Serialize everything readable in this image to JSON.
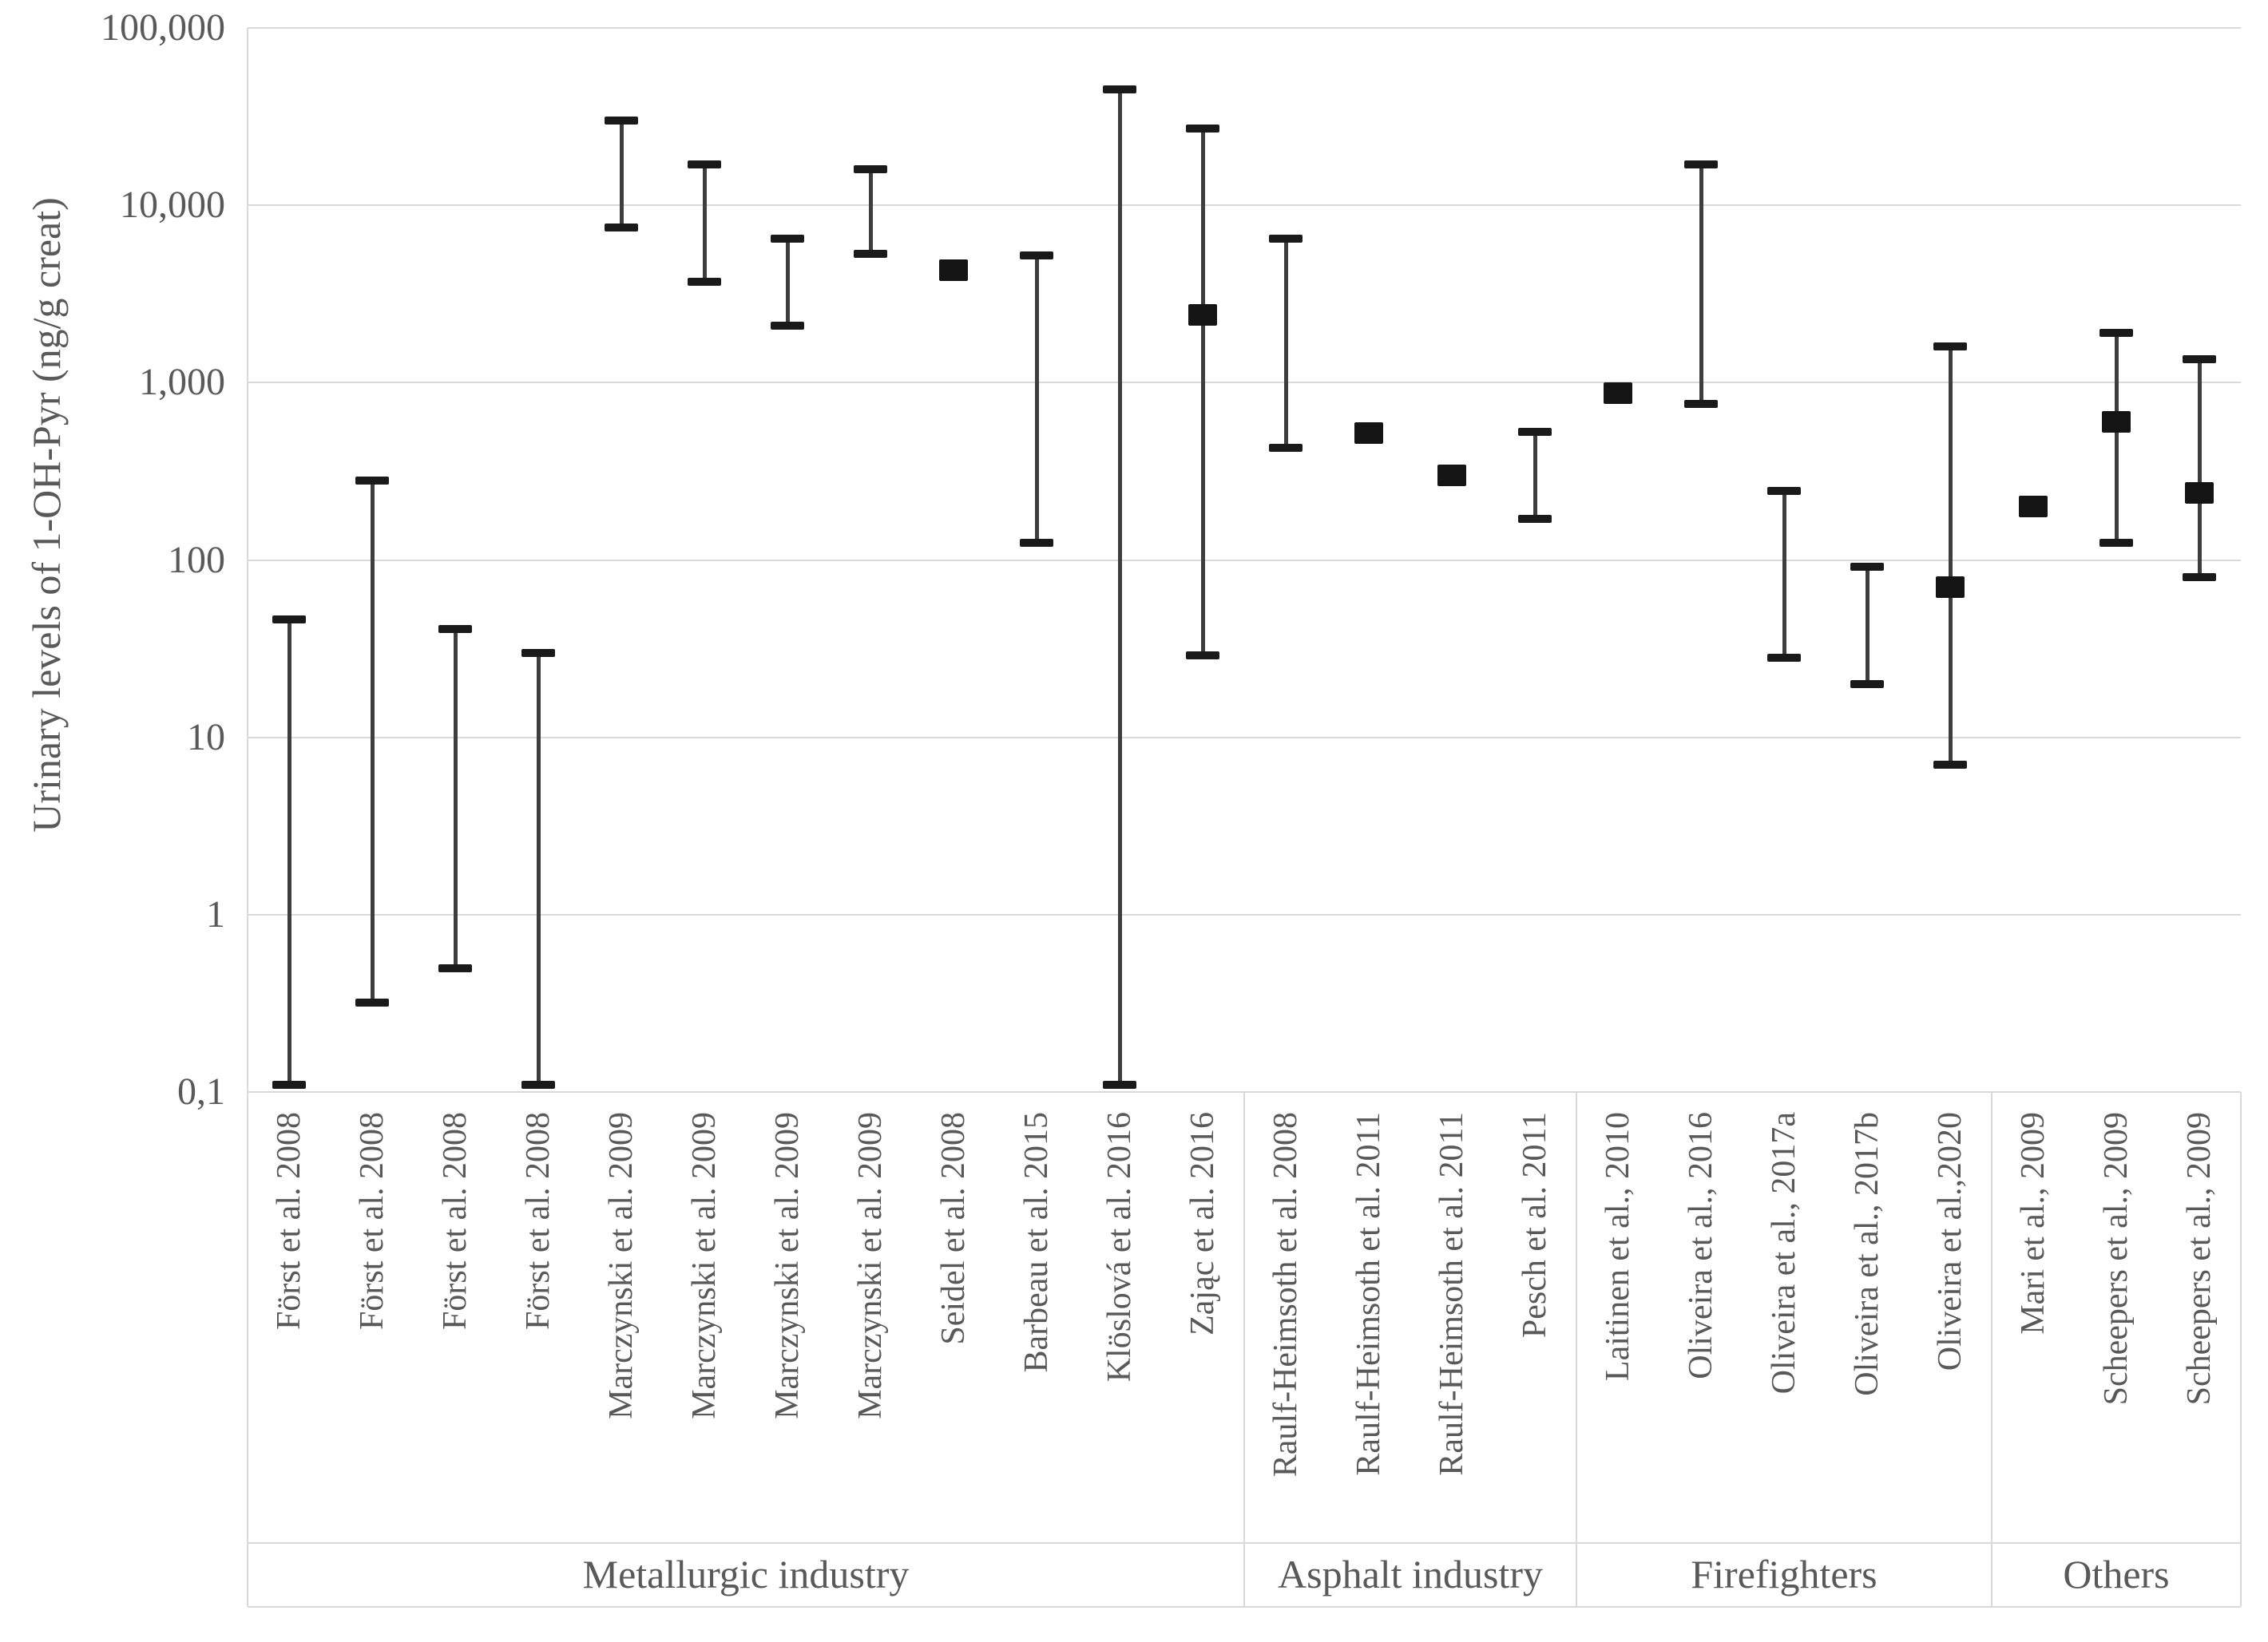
{
  "chart_data": {
    "type": "error-bar-log",
    "title": "",
    "ylabel": "Urinary levels of 1-OH-Pyr (ng/g creat)",
    "xlabel": "",
    "ylim": [
      0.1,
      100000
    ],
    "grid": true,
    "legend": "none",
    "y_ticks": [
      "100,000",
      "10,000",
      "1,000",
      "100",
      "10",
      "1",
      "0,1"
    ],
    "y_tick_values": [
      100000,
      10000,
      1000,
      100,
      10,
      1,
      0.1
    ],
    "colors": {
      "error_line": "#3d3d3d",
      "error_cap": "#1a1a1a",
      "marker": "#141414",
      "grid": "#d9d9d9",
      "text": "#595959"
    },
    "groups": [
      {
        "label": "Metallurgic industry",
        "studies": [
          {
            "label": "Först et al. 2008",
            "low": 0.11,
            "high": 46,
            "marker": null
          },
          {
            "label": "Först et al. 2008",
            "low": 0.32,
            "high": 280,
            "marker": null
          },
          {
            "label": "Först et al. 2008",
            "low": 0.5,
            "high": 41,
            "marker": null
          },
          {
            "label": "Först et al. 2008",
            "low": 0.11,
            "high": 30,
            "marker": null
          },
          {
            "label": "Marczynski et al. 2009",
            "low": 7500,
            "high": 30000,
            "marker": null
          },
          {
            "label": "Marczynski et al. 2009",
            "low": 3700,
            "high": 17000,
            "marker": null
          },
          {
            "label": "Marczynski et al. 2009",
            "low": 2100,
            "high": 6500,
            "marker": null
          },
          {
            "label": "Marczynski et al. 2009",
            "low": 5300,
            "high": 16000,
            "marker": null
          },
          {
            "label": "Seidel et al. 2008",
            "low": null,
            "high": null,
            "marker": 4300
          },
          {
            "label": "Barbeau et al. 2015",
            "low": 125,
            "high": 5200,
            "marker": null
          },
          {
            "label": "Klöslová et al. 2016",
            "low": 0.11,
            "high": 45000,
            "marker": null
          },
          {
            "label": "Zając et al. 2016",
            "low": 29,
            "high": 27000,
            "marker": 2400
          }
        ]
      },
      {
        "label": "Asphalt industry",
        "studies": [
          {
            "label": "Raulf-Heimsoth et al. 2008",
            "low": 430,
            "high": 6500,
            "marker": null
          },
          {
            "label": "Raulf-Heimsoth et al. 2011",
            "low": null,
            "high": null,
            "marker": 520
          },
          {
            "label": "Raulf-Heimsoth et al. 2011",
            "low": null,
            "high": null,
            "marker": 300
          },
          {
            "label": "Pesch et al. 2011",
            "low": 170,
            "high": 530,
            "marker": null
          }
        ]
      },
      {
        "label": "Firefighters",
        "studies": [
          {
            "label": "Laitinen et al., 2010",
            "low": null,
            "high": null,
            "marker": 870
          },
          {
            "label": "Oliveira et al., 2016",
            "low": 760,
            "high": 17000,
            "marker": null
          },
          {
            "label": "Oliveira et al., 2017a",
            "low": 28,
            "high": 245,
            "marker": null
          },
          {
            "label": "Oliveira et al., 2017b",
            "low": 20,
            "high": 92,
            "marker": null
          },
          {
            "label": "Oliveira et al.,2020",
            "low": 7,
            "high": 1600,
            "marker": 70
          }
        ]
      },
      {
        "label": "Others",
        "studies": [
          {
            "label": "Mari et al., 2009",
            "low": null,
            "high": null,
            "marker": 200
          },
          {
            "label": "Scheepers et al., 2009",
            "low": 125,
            "high": 1900,
            "marker": 600
          },
          {
            "label": "Scheepers et al., 2009",
            "low": 80,
            "high": 1350,
            "marker": 240
          }
        ]
      }
    ]
  }
}
